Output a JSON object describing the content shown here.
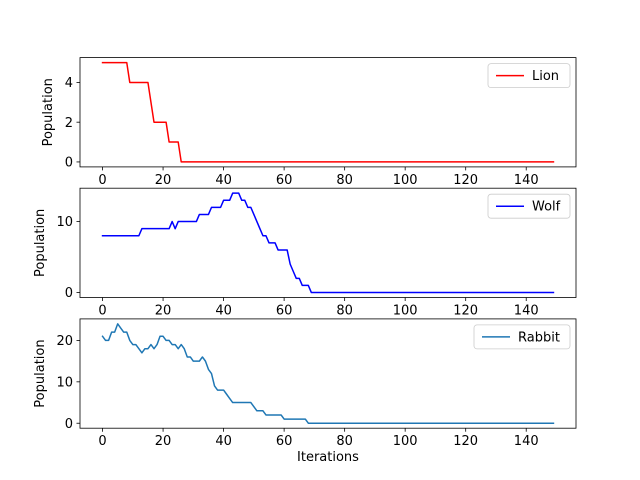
{
  "chart_data": [
    {
      "type": "line",
      "xlabel": "",
      "ylabel": "Population",
      "xlim": [
        -7.45,
        156.45
      ],
      "ylim": [
        -0.25,
        5.25
      ],
      "xticks": [
        0,
        20,
        40,
        60,
        80,
        100,
        120,
        140
      ],
      "yticks": [
        0,
        2,
        4
      ],
      "legend_position": "upper right",
      "series": [
        {
          "name": "Lion",
          "color": "#ff0000",
          "points": [
            [
              0,
              5
            ],
            [
              8,
              5
            ],
            [
              9,
              4
            ],
            [
              15,
              4
            ],
            [
              17,
              2
            ],
            [
              21,
              2
            ],
            [
              22,
              1
            ],
            [
              25,
              1
            ],
            [
              26,
              0
            ],
            [
              149,
              0
            ]
          ]
        }
      ]
    },
    {
      "type": "line",
      "xlabel": "",
      "ylabel": "Population",
      "xlim": [
        -7.45,
        156.45
      ],
      "ylim": [
        -0.7,
        14.7
      ],
      "xticks": [
        0,
        20,
        40,
        60,
        80,
        100,
        120,
        140
      ],
      "yticks": [
        0,
        10
      ],
      "legend_position": "upper right",
      "series": [
        {
          "name": "Wolf",
          "color": "#0000ff",
          "points": [
            [
              0,
              8
            ],
            [
              12,
              8
            ],
            [
              13,
              9
            ],
            [
              22,
              9
            ],
            [
              23,
              10
            ],
            [
              24,
              9
            ],
            [
              25,
              10
            ],
            [
              31,
              10
            ],
            [
              32,
              11
            ],
            [
              35,
              11
            ],
            [
              36,
              12
            ],
            [
              39,
              12
            ],
            [
              40,
              13
            ],
            [
              42,
              13
            ],
            [
              43,
              14
            ],
            [
              45,
              14
            ],
            [
              46,
              13
            ],
            [
              47,
              13
            ],
            [
              48,
              12
            ],
            [
              49,
              12
            ],
            [
              50,
              11
            ],
            [
              51,
              10
            ],
            [
              52,
              9
            ],
            [
              53,
              8
            ],
            [
              54,
              8
            ],
            [
              55,
              7
            ],
            [
              57,
              7
            ],
            [
              58,
              6
            ],
            [
              61,
              6
            ],
            [
              62,
              4
            ],
            [
              63,
              3
            ],
            [
              64,
              2
            ],
            [
              65,
              2
            ],
            [
              66,
              1
            ],
            [
              68,
              1
            ],
            [
              69,
              0
            ],
            [
              149,
              0
            ]
          ]
        }
      ]
    },
    {
      "type": "line",
      "xlabel": "Iterations",
      "ylabel": "Population",
      "xlim": [
        -7.45,
        156.45
      ],
      "ylim": [
        -1.2,
        25.2
      ],
      "xticks": [
        0,
        20,
        40,
        60,
        80,
        100,
        120,
        140
      ],
      "yticks": [
        0,
        10,
        20
      ],
      "legend_position": "upper right",
      "series": [
        {
          "name": "Rabbit",
          "color": "#1f77b4",
          "points": [
            [
              0,
              21
            ],
            [
              1,
              20
            ],
            [
              2,
              20
            ],
            [
              3,
              22
            ],
            [
              4,
              22
            ],
            [
              5,
              24
            ],
            [
              6,
              23
            ],
            [
              7,
              22
            ],
            [
              8,
              22
            ],
            [
              9,
              20
            ],
            [
              10,
              19
            ],
            [
              11,
              19
            ],
            [
              12,
              18
            ],
            [
              13,
              17
            ],
            [
              14,
              18
            ],
            [
              15,
              18
            ],
            [
              16,
              19
            ],
            [
              17,
              18
            ],
            [
              18,
              19
            ],
            [
              19,
              21
            ],
            [
              20,
              21
            ],
            [
              21,
              20
            ],
            [
              22,
              20
            ],
            [
              23,
              19
            ],
            [
              24,
              19
            ],
            [
              25,
              18
            ],
            [
              26,
              19
            ],
            [
              27,
              18
            ],
            [
              28,
              16
            ],
            [
              29,
              16
            ],
            [
              30,
              15
            ],
            [
              31,
              15
            ],
            [
              32,
              15
            ],
            [
              33,
              16
            ],
            [
              34,
              15
            ],
            [
              35,
              13
            ],
            [
              36,
              12
            ],
            [
              37,
              9
            ],
            [
              38,
              8
            ],
            [
              39,
              8
            ],
            [
              40,
              8
            ],
            [
              41,
              7
            ],
            [
              42,
              6
            ],
            [
              43,
              5
            ],
            [
              49,
              5
            ],
            [
              50,
              4
            ],
            [
              51,
              3
            ],
            [
              53,
              3
            ],
            [
              54,
              2
            ],
            [
              59,
              2
            ],
            [
              60,
              1
            ],
            [
              67,
              1
            ],
            [
              68,
              0
            ],
            [
              149,
              0
            ]
          ]
        }
      ]
    }
  ]
}
